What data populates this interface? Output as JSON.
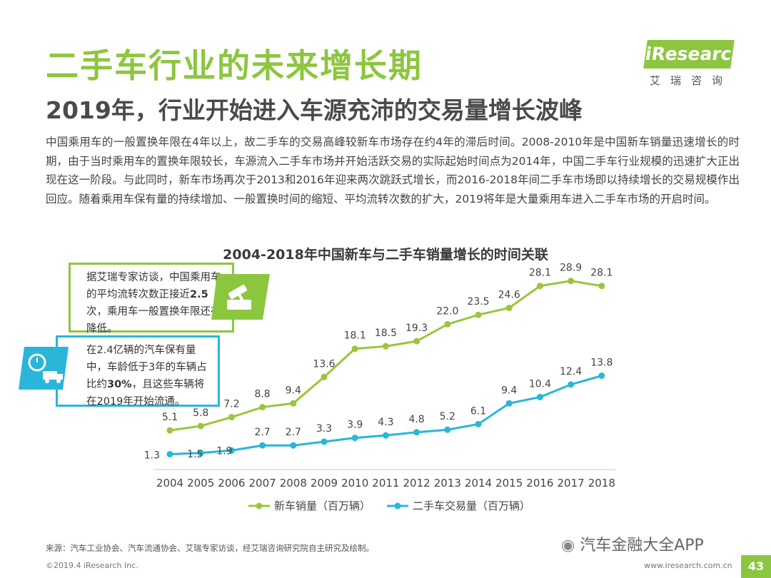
{
  "header": {
    "title": "二手车行业的未来增长期",
    "subtitle": "2019年，行业开始进入车源充沛的交易量增长波峰"
  },
  "logo": {
    "wordmark": "iResearch",
    "cn": "艾瑞咨询"
  },
  "intro": "中国乘用车的一般置换年限在4年以上，故二手车的交易高峰较新车市场存在约4年的滞后时间。2008-2010年是中国新车销量迅速增长的时期，由于当时乘用车的置换年限较长，车源流入二手车市场并开始活跃交易的实际起始时间点为2014年，中国二手车行业规模的迅速扩大正出现在这一阶段。与此同时，新车市场再次于2013和2016年迎来两次跳跃式增长，而2016-2018年间二手车市场即以持续增长的交易规模作出回应。随着乘用车保有量的持续增加、一般置换时间的缩短、平均流转次数的扩大，2019将年是大量乘用车进入二手车市场的开启时间。",
  "callouts": {
    "c1": {
      "pre": "据艾瑞专家访谈，中国乘用车的平均流转次数正接近",
      "bold": "2.5",
      "post": "次，乘用车一般置换年限还在降低。"
    },
    "c2": {
      "pre": "在2.4亿辆的汽车保有量中，车龄低于3年的车辆占比约",
      "bold": "30%",
      "post": "，且这些车辆将在2019年开始流通。"
    }
  },
  "chart_data": {
    "type": "line",
    "title": "2004-2018年中国新车与二手车销量增长的时间关联",
    "categories": [
      "2004",
      "2005",
      "2006",
      "2007",
      "2008",
      "2009",
      "2010",
      "2011",
      "2012",
      "2013",
      "2014",
      "2015",
      "2016",
      "2017",
      "2018"
    ],
    "series": [
      {
        "name": "新车销量（百万辆）",
        "color": "#9bc53d",
        "values": [
          5.1,
          5.8,
          7.2,
          8.8,
          9.4,
          13.6,
          18.1,
          18.5,
          19.3,
          22.0,
          23.5,
          24.6,
          28.1,
          28.9,
          28.1
        ],
        "labels": [
          "5.1",
          "5.8",
          "7.2",
          "8.8",
          "9.4",
          "13.6",
          "18.1",
          "18.5",
          "19.3",
          "22.0",
          "23.5",
          "24.6",
          "28.1",
          "28.9",
          "28.1"
        ]
      },
      {
        "name": "二手车交易量（百万辆）",
        "color": "#29b6d8",
        "values": [
          1.3,
          1.5,
          1.9,
          2.7,
          2.7,
          3.3,
          3.9,
          4.3,
          4.8,
          5.2,
          6.1,
          9.4,
          10.4,
          12.4,
          13.8
        ],
        "labels": [
          "1.3",
          "1.5",
          "1.9",
          "2.7",
          "2.7",
          "3.3",
          "3.9",
          "4.3",
          "4.8",
          "5.2",
          "6.1",
          "9.4",
          "10.4",
          "12.4",
          "13.8"
        ]
      }
    ],
    "ylim": [
      0,
      30.5
    ],
    "grid": false,
    "legend": "bottom"
  },
  "footer": {
    "source": "来源：汽车工业协会、汽车流通协会、艾瑞专家访谈，经艾瑞咨询研究院自主研究及绘制。",
    "copyright": "©2019.4 iResearch Inc.",
    "website": "www.iresearch.com.cn",
    "watermark": "汽车金融大全APP",
    "page_number": "43"
  }
}
